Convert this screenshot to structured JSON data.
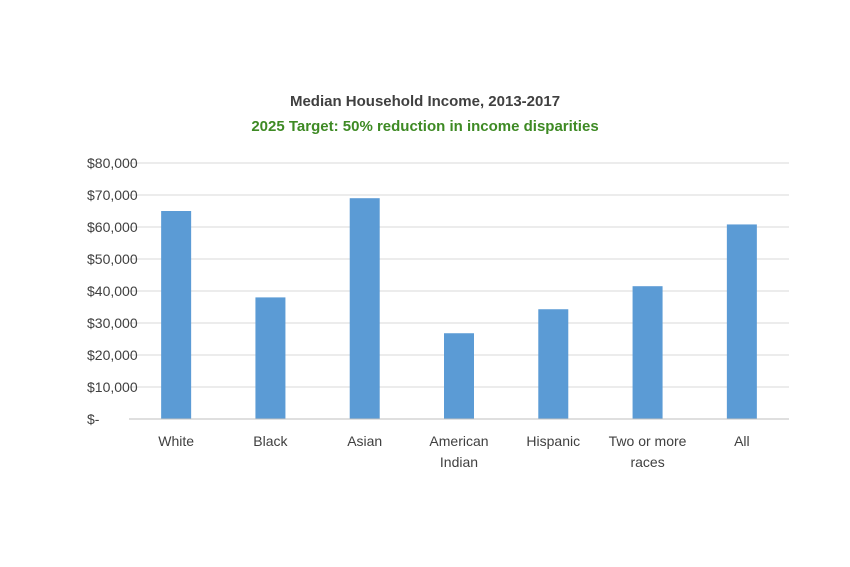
{
  "chart_data": {
    "type": "bar",
    "title": "Median Household Income, 2013-2017",
    "subtitle": "2025 Target: 50% reduction in income disparities",
    "categories": [
      [
        "White"
      ],
      [
        "Black"
      ],
      [
        "Asian"
      ],
      [
        "American",
        "Indian"
      ],
      [
        "Hispanic"
      ],
      [
        "Two or more",
        "races"
      ],
      [
        "All"
      ]
    ],
    "values": [
      65000,
      38000,
      69000,
      26800,
      34300,
      41500,
      60800
    ],
    "ylim": [
      0,
      80000
    ],
    "yticks": [
      0,
      10000,
      20000,
      30000,
      40000,
      50000,
      60000,
      70000,
      80000
    ],
    "ytick_labels": [
      "$-",
      "$10,000",
      "$20,000",
      "$30,000",
      "$40,000",
      "$50,000",
      "$60,000",
      "$70,000",
      "$80,000"
    ],
    "grid": true,
    "legend": "none",
    "colors": {
      "bar": "#5b9bd5",
      "grid": "#d9d9d9",
      "axis": "#bfbfbf",
      "subtitle": "#3e8a24"
    }
  }
}
